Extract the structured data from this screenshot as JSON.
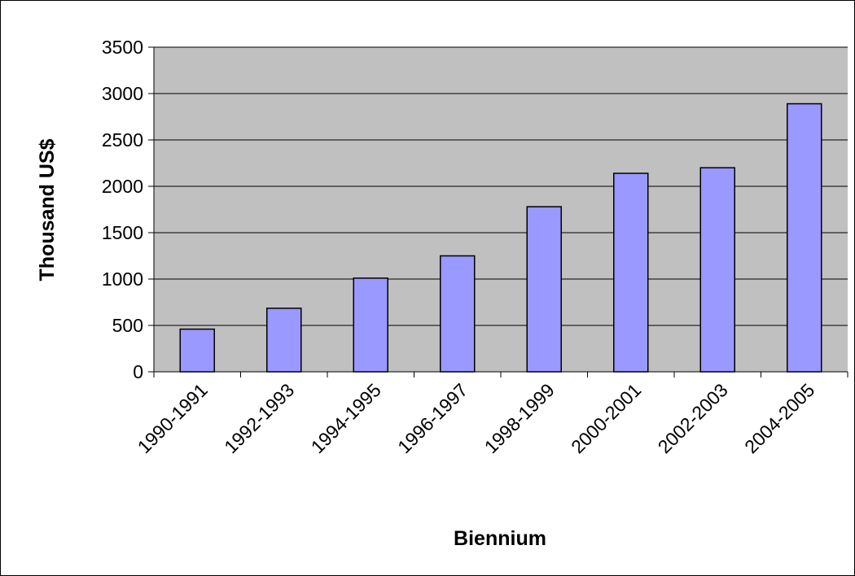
{
  "chart_data": {
    "type": "bar",
    "categories": [
      "1990-1991",
      "1992-1993",
      "1994-1995",
      "1996-1997",
      "1998-1999",
      "2000-2001",
      "2002-2003",
      "2004-2005"
    ],
    "values": [
      460,
      685,
      1010,
      1250,
      1780,
      2140,
      2200,
      2890
    ],
    "xlabel": "Biennium",
    "ylabel": "Thousand US$",
    "ylim": [
      0,
      3500
    ],
    "yticks": [
      0,
      500,
      1000,
      1500,
      2000,
      2500,
      3000,
      3500
    ],
    "grid": "horizontal",
    "legend": "none"
  },
  "colors": {
    "bar_fill": "#9999ff",
    "plot_background": "#c0c0c0",
    "gridline": "#000000",
    "frame": "#000000"
  }
}
